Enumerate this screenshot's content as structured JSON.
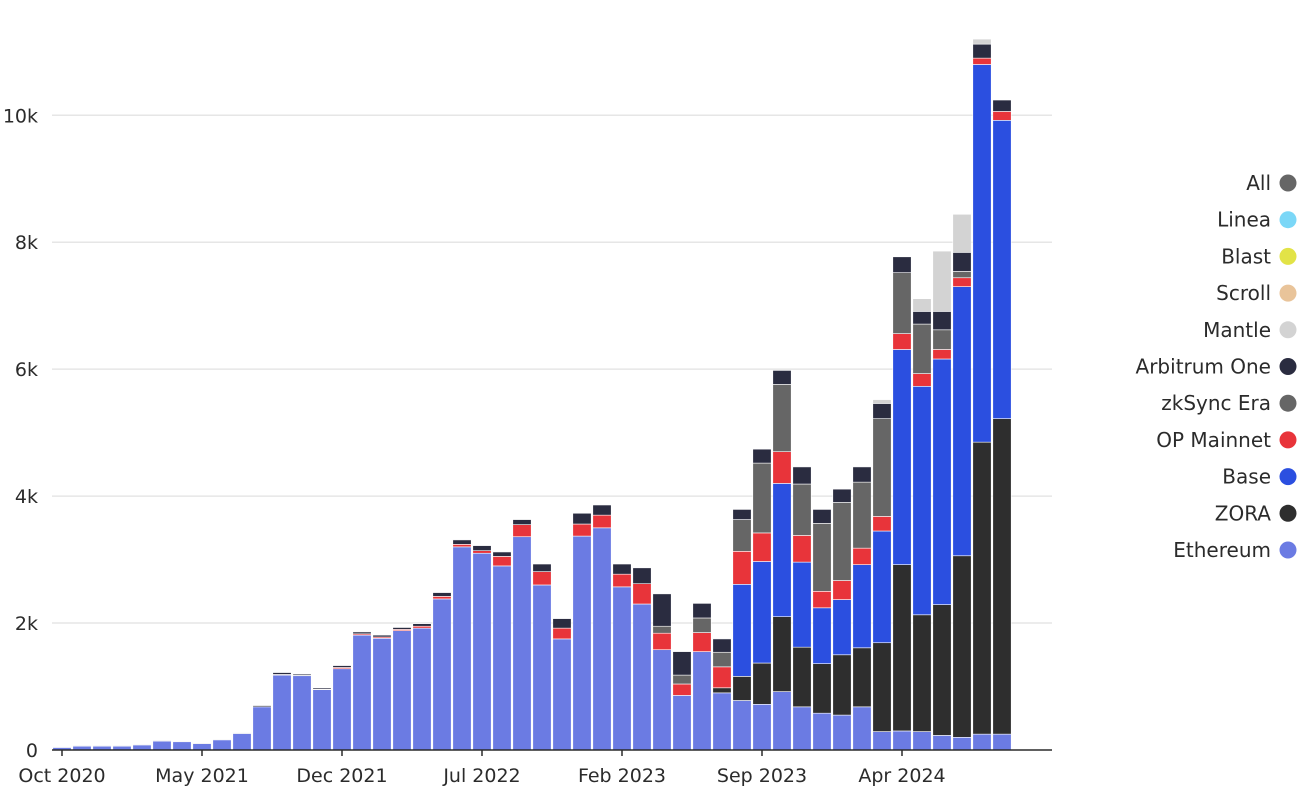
{
  "chart_data": {
    "type": "bar",
    "stacked": true,
    "title": "",
    "xlabel": "",
    "ylabel": "",
    "ylim": [
      0,
      11800
    ],
    "yticks": [
      0,
      2000,
      4000,
      6000,
      8000,
      10000
    ],
    "ytick_labels": [
      "0",
      "2k",
      "4k",
      "6k",
      "8k",
      "10k"
    ],
    "x_tick_labels": [
      {
        "index": 0,
        "label": "Oct 2020"
      },
      {
        "index": 7,
        "label": "May 2021"
      },
      {
        "index": 14,
        "label": "Dec 2021"
      },
      {
        "index": 21,
        "label": "Jul 2022"
      },
      {
        "index": 28,
        "label": "Feb 2023"
      },
      {
        "index": 35,
        "label": "Sep 2023"
      },
      {
        "index": 42,
        "label": "Apr 2024"
      }
    ],
    "categories": [
      "Oct 2020",
      "Nov 2020",
      "Dec 2020",
      "Jan 2021",
      "Feb 2021",
      "Mar 2021",
      "Apr 2021",
      "May 2021",
      "Jun 2021",
      "Jul 2021",
      "Aug 2021",
      "Sep 2021",
      "Oct 2021",
      "Nov 2021",
      "Dec 2021",
      "Jan 2022",
      "Feb 2022",
      "Mar 2022",
      "Apr 2022",
      "May 2022",
      "Jun 2022",
      "Jul 2022",
      "Aug 2022",
      "Sep 2022",
      "Oct 2022",
      "Nov 2022",
      "Dec 2022",
      "Jan 2023",
      "Feb 2023",
      "Mar 2023",
      "Apr 2023",
      "May 2023",
      "Jun 2023",
      "Jul 2023",
      "Aug 2023",
      "Sep 2023",
      "Oct 2023",
      "Nov 2023",
      "Dec 2023",
      "Jan 2024",
      "Feb 2024",
      "Mar 2024",
      "Apr 2024",
      "May 2024",
      "Jun 2024",
      "Jul 2024",
      "Aug 2024",
      "Sep 2024",
      "Oct 2024",
      "Nov 2024"
    ],
    "legend_position": "right",
    "legend_order": [
      "All",
      "Linea",
      "Blast",
      "Scroll",
      "Mantle",
      "Arbitrum One",
      "zkSync Era",
      "OP Mainnet",
      "Base",
      "ZORA",
      "Ethereum"
    ],
    "series": [
      {
        "name": "Ethereum",
        "color": "#6b7be3",
        "values": [
          40,
          60,
          60,
          60,
          80,
          140,
          130,
          100,
          160,
          260,
          680,
          1180,
          1170,
          950,
          1280,
          1810,
          1760,
          1880,
          1920,
          2380,
          3200,
          3100,
          2900,
          3360,
          2600,
          1750,
          3370,
          3500,
          2570,
          2300,
          1580,
          860,
          1550,
          900,
          780,
          720,
          920,
          680,
          580,
          550,
          680,
          290,
          300,
          290,
          230,
          200,
          250,
          250,
          0,
          0
        ]
      },
      {
        "name": "ZORA",
        "color": "#2e2e2e",
        "values": [
          0,
          0,
          0,
          0,
          0,
          0,
          0,
          0,
          0,
          0,
          0,
          0,
          0,
          0,
          0,
          0,
          0,
          0,
          0,
          0,
          0,
          0,
          0,
          0,
          0,
          0,
          0,
          0,
          0,
          0,
          0,
          0,
          0,
          80,
          380,
          650,
          1180,
          940,
          780,
          950,
          930,
          1400,
          2620,
          1840,
          2060,
          2860,
          4600,
          4970,
          0,
          0
        ]
      },
      {
        "name": "Base",
        "color": "#2b4fe0",
        "values": [
          0,
          0,
          0,
          0,
          0,
          0,
          0,
          0,
          0,
          0,
          0,
          0,
          0,
          0,
          0,
          0,
          0,
          0,
          0,
          0,
          0,
          0,
          0,
          0,
          0,
          0,
          0,
          0,
          0,
          0,
          0,
          0,
          0,
          0,
          1450,
          1600,
          2100,
          1340,
          880,
          870,
          1310,
          1760,
          3390,
          3600,
          3870,
          4240,
          5950,
          4700,
          0,
          0
        ]
      },
      {
        "name": "OP Mainnet",
        "color": "#e8343a",
        "values": [
          0,
          0,
          0,
          0,
          0,
          0,
          0,
          0,
          0,
          0,
          0,
          10,
          5,
          10,
          20,
          20,
          20,
          20,
          30,
          40,
          40,
          40,
          150,
          190,
          210,
          170,
          190,
          200,
          200,
          320,
          260,
          180,
          300,
          330,
          520,
          450,
          500,
          420,
          260,
          300,
          260,
          230,
          250,
          200,
          150,
          140,
          100,
          140,
          0,
          0
        ]
      },
      {
        "name": "zkSync Era",
        "color": "#666666",
        "values": [
          0,
          0,
          0,
          0,
          0,
          0,
          0,
          0,
          0,
          0,
          0,
          0,
          0,
          0,
          0,
          0,
          0,
          0,
          0,
          0,
          0,
          0,
          0,
          0,
          0,
          0,
          0,
          0,
          0,
          0,
          110,
          140,
          230,
          230,
          500,
          1100,
          1060,
          810,
          1070,
          1230,
          1040,
          1540,
          960,
          780,
          310,
          100,
          0,
          0,
          0,
          0
        ]
      },
      {
        "name": "Arbitrum One",
        "color": "#2a2c40",
        "values": [
          10,
          10,
          10,
          10,
          10,
          10,
          10,
          10,
          10,
          10,
          20,
          30,
          20,
          20,
          30,
          30,
          30,
          30,
          40,
          60,
          70,
          80,
          70,
          80,
          120,
          150,
          170,
          160,
          160,
          250,
          510,
          370,
          230,
          210,
          160,
          220,
          220,
          270,
          220,
          210,
          240,
          240,
          250,
          200,
          290,
          300,
          220,
          180,
          0,
          0
        ]
      },
      {
        "name": "Mantle",
        "color": "#d3d3d3",
        "values": [
          0,
          0,
          0,
          0,
          0,
          0,
          0,
          0,
          0,
          0,
          0,
          0,
          0,
          0,
          0,
          0,
          0,
          0,
          0,
          0,
          0,
          0,
          0,
          0,
          0,
          0,
          0,
          0,
          0,
          0,
          0,
          0,
          0,
          0,
          0,
          0,
          0,
          0,
          0,
          0,
          0,
          60,
          0,
          200,
          950,
          600,
          80,
          0,
          0,
          0
        ]
      },
      {
        "name": "Scroll",
        "color": "#e9c49a",
        "values": [
          0,
          0,
          0,
          0,
          0,
          0,
          0,
          0,
          0,
          0,
          0,
          0,
          0,
          0,
          0,
          0,
          0,
          0,
          0,
          0,
          0,
          0,
          0,
          0,
          0,
          0,
          0,
          0,
          0,
          0,
          0,
          0,
          0,
          0,
          0,
          0,
          0,
          0,
          0,
          0,
          0,
          0,
          0,
          0,
          0,
          0,
          0,
          0,
          0,
          0
        ]
      },
      {
        "name": "Blast",
        "color": "#e2e347",
        "values": [
          0,
          0,
          0,
          0,
          0,
          0,
          0,
          0,
          0,
          0,
          0,
          0,
          0,
          0,
          0,
          0,
          0,
          0,
          0,
          0,
          0,
          0,
          0,
          0,
          0,
          0,
          0,
          0,
          0,
          0,
          0,
          0,
          0,
          0,
          0,
          0,
          0,
          0,
          0,
          0,
          0,
          0,
          0,
          0,
          0,
          0,
          0,
          0,
          0,
          0
        ]
      },
      {
        "name": "Linea",
        "color": "#7bd7f7",
        "values": [
          0,
          0,
          0,
          0,
          0,
          0,
          0,
          0,
          0,
          0,
          0,
          0,
          0,
          0,
          0,
          0,
          0,
          0,
          0,
          0,
          0,
          0,
          0,
          0,
          0,
          0,
          0,
          0,
          0,
          0,
          0,
          0,
          0,
          0,
          0,
          0,
          0,
          0,
          0,
          0,
          0,
          0,
          0,
          0,
          0,
          0,
          0,
          0,
          0,
          0
        ]
      },
      {
        "name": "All",
        "color": "#666666",
        "values": [
          0,
          0,
          0,
          0,
          0,
          0,
          0,
          0,
          0,
          0,
          0,
          0,
          0,
          0,
          0,
          0,
          0,
          0,
          0,
          0,
          0,
          0,
          0,
          0,
          0,
          0,
          0,
          0,
          0,
          0,
          0,
          0,
          0,
          0,
          0,
          0,
          0,
          0,
          0,
          0,
          0,
          0,
          0,
          0,
          0,
          0,
          0,
          0,
          0,
          0
        ]
      }
    ]
  }
}
